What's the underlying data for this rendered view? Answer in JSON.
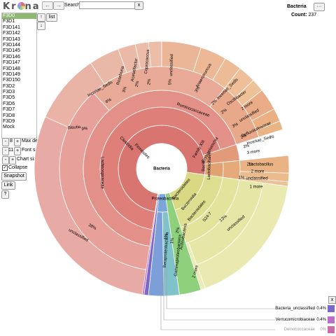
{
  "logo": {
    "pre": "K",
    "mid": "r",
    "post": "na"
  },
  "nav": {
    "back": "←",
    "forward": "→"
  },
  "search": {
    "label": "Search:",
    "value": "",
    "clear": "x"
  },
  "datasets": [
    "F3D0",
    "F3D1",
    "F3D141",
    "F3D142",
    "F3D143",
    "F3D144",
    "F3D145",
    "F3D146",
    "F3D147",
    "F3D148",
    "F3D149",
    "F3D150",
    "F3D2",
    "F3D3",
    "F3D5",
    "F3D6",
    "F3D7",
    "F3D8",
    "F3D9",
    "Mock"
  ],
  "dataset_selected": 0,
  "dataset_buttons": {
    "up": "↑",
    "down": "↓",
    "list": "list"
  },
  "controls": {
    "max_depth": {
      "minus": "-",
      "value": "8",
      "plus": "+",
      "label": "Max depth"
    },
    "font_size": {
      "minus": "-",
      "value": "11",
      "plus": "+",
      "label": "Font size"
    },
    "chart_size": {
      "minus": "-",
      "plus": "+",
      "label": "Chart size"
    },
    "collapse": {
      "label": "Collapse",
      "checked": "✓"
    },
    "snapshot": "Snapshot",
    "link": "Link",
    "help": "?"
  },
  "details": {
    "focus": "Bacteria",
    "more": "···",
    "count_label": "Count:",
    "count_value": "237"
  },
  "chart_labels": {
    "center": "Bacteria",
    "firmicutes": "Firmicutes",
    "clostridia": "Clostridia",
    "ruminococcaceae": "Ruminococcaceae",
    "lachnospiraceae": "Lachnospiraceae",
    "lachno_unclassified": "unclassified",
    "lachno_pct": "28%",
    "blautia": "Blautia",
    "blautia_pct": "9%",
    "incertae_sedis": "Incertae_Sedis",
    "incertae_sedis_pct": "6%",
    "roseburia": "Roseburia",
    "roseburia_pct": "3%",
    "acetatifactor": "Acetatifactor",
    "acetatifactor_pct": "2%",
    "coprococcus": "Coprococcus",
    "coprococcus_pct": "2%",
    "rumi_unclassified": "unclassified",
    "rumi_unclassified_pct": "5%",
    "anaerotruncus": "Anaerotruncus",
    "anaerotruncus_pct": "3%",
    "rumi_incertae": "Incertae_Sedis",
    "rumi_incertae_pct": "2%",
    "oscillibacter": "Oscillibacter",
    "oscillibacter_pct": "2%",
    "rumi_more": "2 more",
    "clos_unclassified": "unclassified",
    "clos_unclassified_pct": "3%",
    "defluviitaleaceae": "Defluviitaleaceae",
    "defluviitaleaceae_pct": "2%",
    "def_incertae": "Incertae_Sedis",
    "def_incertae_pct": "2%",
    "clos_more": "3 more",
    "family_xiii": "Family XIII",
    "erysipelotrichia": "Erysipelotrichia",
    "lactobacillales": "Lactobacillales",
    "lactobacillus": "Lactobacillus",
    "lactobacillus_pct": "2%",
    "lacto_more": "2 more",
    "lacto_unclassified": "unclassified",
    "lacto_unclassified_pct": "1%",
    "bacilli": "Bacilli",
    "firm_more": "1 more",
    "bacteroidetes": "Bacteroidetes",
    "bacteroidia": "Bacteroidia",
    "bacteroidales": "Bacteroidales",
    "s24_7": "S24-7",
    "s24_unclassified": "unclassified",
    "s24_pct": "13%",
    "bact_more": "2 more",
    "proteobacteria": "Proteobacteria",
    "actinobacteria": "Actinobacteria",
    "actino_pct": "2%",
    "gammaproteobacteria": "Gammaproteobacteria",
    "gamma_pct": "1%",
    "betaproteobacteria": "Betaproteobacteria",
    "beta_pct": "1%"
  },
  "legend": {
    "close": "x",
    "items": [
      {
        "name": "Bacteria_unclassified",
        "pct": "0.4%",
        "color": "#7b68c9"
      },
      {
        "name": "Verrucomicrobiaceae",
        "pct": "0.4%",
        "color": "#b96ec9"
      },
      {
        "name": "Deinococcaceae",
        "pct": "0%",
        "color": "#c96ea8"
      }
    ]
  },
  "colors": {
    "firmicutes": "#d9736e",
    "bacteroidetes": "#d9d98a",
    "actinobacteria": "#8fd07c",
    "proteobacteria": "#7aa6d9",
    "selected": "#8fb873"
  }
}
